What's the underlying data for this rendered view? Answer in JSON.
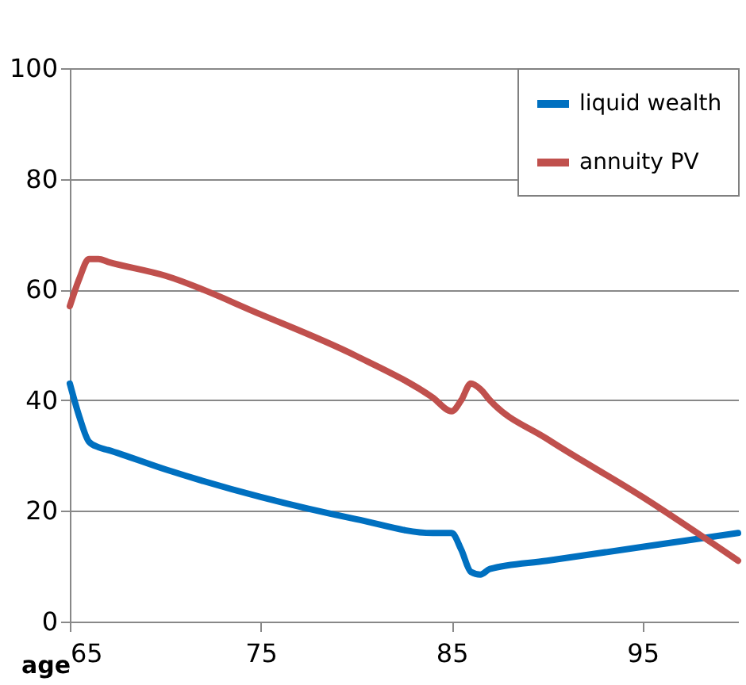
{
  "chart_data": {
    "type": "line",
    "xlabel": "age",
    "x": [
      65,
      65.5,
      66,
      66.5,
      67,
      70,
      75,
      80,
      84,
      85,
      85.5,
      86,
      86.5,
      87,
      90,
      95,
      100
    ],
    "series": [
      {
        "name": "liquid wealth",
        "color": "#0070c0",
        "values": [
          43,
          37,
          32.5,
          31.5,
          31,
          27.5,
          22.5,
          18.5,
          16,
          16,
          13,
          9,
          8.5,
          9.5,
          11,
          13.5,
          16
        ]
      },
      {
        "name": "annuity PV",
        "color": "#c0504d",
        "values": [
          57,
          62,
          65.5,
          65.5,
          65,
          62.5,
          55.5,
          48,
          40.5,
          38,
          40,
          43,
          42,
          40,
          33,
          22.5,
          11
        ]
      }
    ],
    "xlim": [
      65,
      100
    ],
    "xticks": [
      65,
      75,
      85,
      95
    ],
    "ylim": [
      0,
      100
    ],
    "yticks": [
      0,
      20,
      40,
      60,
      80,
      100
    ],
    "grid": "y",
    "legend": "top right",
    "marker": "none",
    "line_style": "solid"
  }
}
